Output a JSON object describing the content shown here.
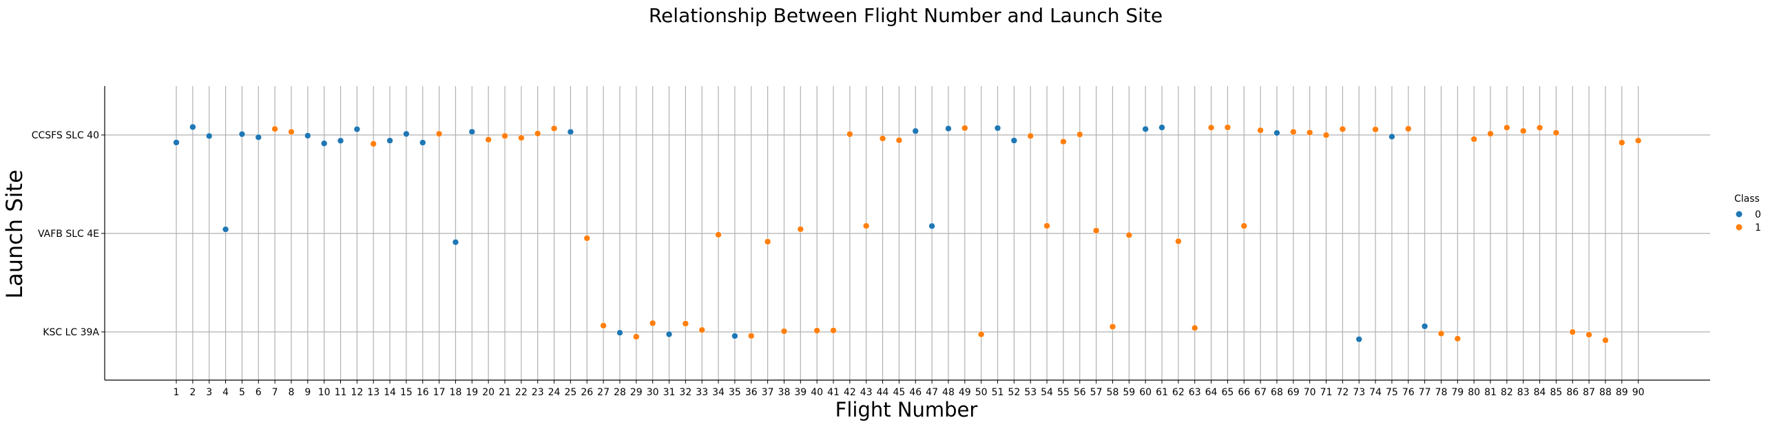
{
  "chart_data": {
    "type": "scatter",
    "title": "Relationship Between Flight Number and Launch Site",
    "xlabel": "Flight Number",
    "ylabel": "Launch Site",
    "x_categories": [
      "1",
      "2",
      "3",
      "4",
      "5",
      "6",
      "7",
      "8",
      "9",
      "10",
      "11",
      "12",
      "13",
      "14",
      "15",
      "16",
      "17",
      "18",
      "19",
      "20",
      "21",
      "22",
      "23",
      "24",
      "25",
      "26",
      "27",
      "28",
      "29",
      "30",
      "31",
      "32",
      "33",
      "34",
      "35",
      "36",
      "37",
      "38",
      "39",
      "40",
      "41",
      "42",
      "43",
      "44",
      "45",
      "46",
      "47",
      "48",
      "49",
      "50",
      "51",
      "52",
      "53",
      "54",
      "55",
      "56",
      "57",
      "58",
      "59",
      "60",
      "61",
      "62",
      "63",
      "64",
      "65",
      "66",
      "67",
      "68",
      "69",
      "70",
      "71",
      "72",
      "73",
      "74",
      "75",
      "76",
      "77",
      "78",
      "79",
      "80",
      "81",
      "82",
      "83",
      "84",
      "85",
      "86",
      "87",
      "88",
      "89",
      "90"
    ],
    "y_categories": [
      "CCSFS SLC 40",
      "VAFB SLC 4E",
      "KSC LC 39A"
    ],
    "grid": true,
    "legend": {
      "title": "Class",
      "placement": "right",
      "entries": [
        {
          "label": "0",
          "color": "#1f77b4"
        },
        {
          "label": "1",
          "color": "#ff7f0e"
        }
      ]
    },
    "points": [
      {
        "flight": 1,
        "site": "CCSFS SLC 40",
        "class": 0
      },
      {
        "flight": 2,
        "site": "CCSFS SLC 40",
        "class": 0
      },
      {
        "flight": 3,
        "site": "CCSFS SLC 40",
        "class": 0
      },
      {
        "flight": 4,
        "site": "VAFB SLC 4E",
        "class": 0
      },
      {
        "flight": 5,
        "site": "CCSFS SLC 40",
        "class": 0
      },
      {
        "flight": 6,
        "site": "CCSFS SLC 40",
        "class": 0
      },
      {
        "flight": 7,
        "site": "CCSFS SLC 40",
        "class": 1
      },
      {
        "flight": 8,
        "site": "CCSFS SLC 40",
        "class": 1
      },
      {
        "flight": 9,
        "site": "CCSFS SLC 40",
        "class": 0
      },
      {
        "flight": 10,
        "site": "CCSFS SLC 40",
        "class": 0
      },
      {
        "flight": 11,
        "site": "CCSFS SLC 40",
        "class": 0
      },
      {
        "flight": 12,
        "site": "CCSFS SLC 40",
        "class": 0
      },
      {
        "flight": 13,
        "site": "CCSFS SLC 40",
        "class": 1
      },
      {
        "flight": 14,
        "site": "CCSFS SLC 40",
        "class": 0
      },
      {
        "flight": 15,
        "site": "CCSFS SLC 40",
        "class": 0
      },
      {
        "flight": 16,
        "site": "CCSFS SLC 40",
        "class": 0
      },
      {
        "flight": 17,
        "site": "CCSFS SLC 40",
        "class": 1
      },
      {
        "flight": 18,
        "site": "VAFB SLC 4E",
        "class": 0
      },
      {
        "flight": 19,
        "site": "CCSFS SLC 40",
        "class": 0
      },
      {
        "flight": 20,
        "site": "CCSFS SLC 40",
        "class": 1
      },
      {
        "flight": 21,
        "site": "CCSFS SLC 40",
        "class": 1
      },
      {
        "flight": 22,
        "site": "CCSFS SLC 40",
        "class": 1
      },
      {
        "flight": 23,
        "site": "CCSFS SLC 40",
        "class": 1
      },
      {
        "flight": 24,
        "site": "CCSFS SLC 40",
        "class": 1
      },
      {
        "flight": 25,
        "site": "CCSFS SLC 40",
        "class": 0
      },
      {
        "flight": 26,
        "site": "VAFB SLC 4E",
        "class": 1
      },
      {
        "flight": 27,
        "site": "KSC LC 39A",
        "class": 1
      },
      {
        "flight": 28,
        "site": "KSC LC 39A",
        "class": 0
      },
      {
        "flight": 29,
        "site": "KSC LC 39A",
        "class": 1
      },
      {
        "flight": 30,
        "site": "KSC LC 39A",
        "class": 1
      },
      {
        "flight": 31,
        "site": "KSC LC 39A",
        "class": 0
      },
      {
        "flight": 32,
        "site": "KSC LC 39A",
        "class": 1
      },
      {
        "flight": 33,
        "site": "KSC LC 39A",
        "class": 1
      },
      {
        "flight": 34,
        "site": "VAFB SLC 4E",
        "class": 1
      },
      {
        "flight": 35,
        "site": "KSC LC 39A",
        "class": 0
      },
      {
        "flight": 36,
        "site": "KSC LC 39A",
        "class": 1
      },
      {
        "flight": 37,
        "site": "VAFB SLC 4E",
        "class": 1
      },
      {
        "flight": 38,
        "site": "KSC LC 39A",
        "class": 1
      },
      {
        "flight": 39,
        "site": "VAFB SLC 4E",
        "class": 1
      },
      {
        "flight": 40,
        "site": "KSC LC 39A",
        "class": 1
      },
      {
        "flight": 41,
        "site": "KSC LC 39A",
        "class": 1
      },
      {
        "flight": 42,
        "site": "CCSFS SLC 40",
        "class": 1
      },
      {
        "flight": 43,
        "site": "VAFB SLC 4E",
        "class": 1
      },
      {
        "flight": 44,
        "site": "CCSFS SLC 40",
        "class": 1
      },
      {
        "flight": 45,
        "site": "CCSFS SLC 40",
        "class": 1
      },
      {
        "flight": 46,
        "site": "CCSFS SLC 40",
        "class": 0
      },
      {
        "flight": 47,
        "site": "VAFB SLC 4E",
        "class": 0
      },
      {
        "flight": 48,
        "site": "CCSFS SLC 40",
        "class": 0
      },
      {
        "flight": 49,
        "site": "CCSFS SLC 40",
        "class": 1
      },
      {
        "flight": 50,
        "site": "KSC LC 39A",
        "class": 1
      },
      {
        "flight": 51,
        "site": "CCSFS SLC 40",
        "class": 0
      },
      {
        "flight": 52,
        "site": "CCSFS SLC 40",
        "class": 0
      },
      {
        "flight": 53,
        "site": "CCSFS SLC 40",
        "class": 1
      },
      {
        "flight": 54,
        "site": "VAFB SLC 4E",
        "class": 1
      },
      {
        "flight": 55,
        "site": "CCSFS SLC 40",
        "class": 1
      },
      {
        "flight": 56,
        "site": "CCSFS SLC 40",
        "class": 1
      },
      {
        "flight": 57,
        "site": "VAFB SLC 4E",
        "class": 1
      },
      {
        "flight": 58,
        "site": "KSC LC 39A",
        "class": 1
      },
      {
        "flight": 59,
        "site": "VAFB SLC 4E",
        "class": 1
      },
      {
        "flight": 60,
        "site": "CCSFS SLC 40",
        "class": 0
      },
      {
        "flight": 61,
        "site": "CCSFS SLC 40",
        "class": 0
      },
      {
        "flight": 62,
        "site": "VAFB SLC 4E",
        "class": 1
      },
      {
        "flight": 63,
        "site": "KSC LC 39A",
        "class": 1
      },
      {
        "flight": 64,
        "site": "CCSFS SLC 40",
        "class": 1
      },
      {
        "flight": 65,
        "site": "CCSFS SLC 40",
        "class": 1
      },
      {
        "flight": 66,
        "site": "VAFB SLC 4E",
        "class": 1
      },
      {
        "flight": 67,
        "site": "CCSFS SLC 40",
        "class": 1
      },
      {
        "flight": 68,
        "site": "CCSFS SLC 40",
        "class": 0
      },
      {
        "flight": 69,
        "site": "CCSFS SLC 40",
        "class": 1
      },
      {
        "flight": 70,
        "site": "CCSFS SLC 40",
        "class": 1
      },
      {
        "flight": 71,
        "site": "CCSFS SLC 40",
        "class": 1
      },
      {
        "flight": 72,
        "site": "CCSFS SLC 40",
        "class": 1
      },
      {
        "flight": 73,
        "site": "KSC LC 39A",
        "class": 0
      },
      {
        "flight": 74,
        "site": "CCSFS SLC 40",
        "class": 1
      },
      {
        "flight": 75,
        "site": "CCSFS SLC 40",
        "class": 0
      },
      {
        "flight": 76,
        "site": "CCSFS SLC 40",
        "class": 1
      },
      {
        "flight": 77,
        "site": "KSC LC 39A",
        "class": 0
      },
      {
        "flight": 78,
        "site": "KSC LC 39A",
        "class": 1
      },
      {
        "flight": 79,
        "site": "KSC LC 39A",
        "class": 1
      },
      {
        "flight": 80,
        "site": "CCSFS SLC 40",
        "class": 1
      },
      {
        "flight": 81,
        "site": "CCSFS SLC 40",
        "class": 1
      },
      {
        "flight": 82,
        "site": "CCSFS SLC 40",
        "class": 1
      },
      {
        "flight": 83,
        "site": "CCSFS SLC 40",
        "class": 1
      },
      {
        "flight": 84,
        "site": "CCSFS SLC 40",
        "class": 1
      },
      {
        "flight": 85,
        "site": "CCSFS SLC 40",
        "class": 1
      },
      {
        "flight": 86,
        "site": "KSC LC 39A",
        "class": 1
      },
      {
        "flight": 87,
        "site": "KSC LC 39A",
        "class": 1
      },
      {
        "flight": 88,
        "site": "KSC LC 39A",
        "class": 1
      },
      {
        "flight": 89,
        "site": "CCSFS SLC 40",
        "class": 1
      },
      {
        "flight": 90,
        "site": "CCSFS SLC 40",
        "class": 1
      }
    ]
  }
}
